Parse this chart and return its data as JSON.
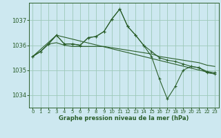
{
  "title": "Graphe pression niveau de la mer (hPa)",
  "bg_color": "#cde8f0",
  "grid_color": "#9dc8b8",
  "line_color": "#2a5e2a",
  "xlim": [
    -0.5,
    23.5
  ],
  "ylim": [
    1033.5,
    1037.7
  ],
  "yticks": [
    1034,
    1035,
    1036,
    1037
  ],
  "xticks": [
    0,
    1,
    2,
    3,
    4,
    5,
    6,
    7,
    8,
    9,
    10,
    11,
    12,
    13,
    14,
    15,
    16,
    17,
    18,
    19,
    20,
    21,
    22,
    23
  ],
  "series": [
    {
      "x": [
        0,
        1,
        2,
        3,
        4,
        5,
        6,
        7,
        8,
        9,
        10,
        11,
        12,
        13,
        14,
        15,
        16,
        17,
        18,
        19,
        20,
        21,
        22,
        23
      ],
      "y": [
        1035.55,
        1035.75,
        1036.05,
        1036.1,
        1036.0,
        1035.95,
        1035.95,
        1035.95,
        1035.95,
        1035.95,
        1035.9,
        1035.85,
        1035.8,
        1035.75,
        1035.7,
        1035.65,
        1035.55,
        1035.5,
        1035.45,
        1035.4,
        1035.35,
        1035.3,
        1035.2,
        1035.15
      ],
      "markers": false
    },
    {
      "x": [
        0,
        1,
        2,
        3,
        4,
        5,
        6,
        7,
        8,
        9,
        10,
        11,
        12,
        13,
        14,
        15,
        16,
        17,
        18,
        19,
        20,
        21,
        22,
        23
      ],
      "y": [
        1035.55,
        1035.75,
        1036.05,
        1036.4,
        1036.05,
        1036.05,
        1036.0,
        1036.3,
        1036.35,
        1036.55,
        1037.05,
        1037.45,
        1036.75,
        1036.4,
        1036.0,
        1035.75,
        1035.5,
        1035.4,
        1035.35,
        1035.25,
        1035.15,
        1035.1,
        1034.95,
        1034.9
      ],
      "markers": true
    },
    {
      "x": [
        0,
        1,
        2,
        3,
        4,
        5,
        6,
        7,
        8,
        9,
        10,
        11,
        12,
        13,
        14,
        15,
        16,
        17,
        18,
        19,
        20,
        21,
        22,
        23
      ],
      "y": [
        1035.55,
        1035.75,
        1036.05,
        1036.4,
        1036.05,
        1036.05,
        1036.0,
        1036.3,
        1036.35,
        1036.55,
        1037.05,
        1037.45,
        1036.75,
        1036.4,
        1036.0,
        1035.55,
        1034.65,
        1033.85,
        1034.35,
        1035.0,
        1035.15,
        1035.1,
        1034.9,
        1034.85
      ],
      "markers": true
    },
    {
      "x": [
        0,
        3,
        23
      ],
      "y": [
        1035.55,
        1036.4,
        1034.85
      ],
      "markers": false
    }
  ]
}
